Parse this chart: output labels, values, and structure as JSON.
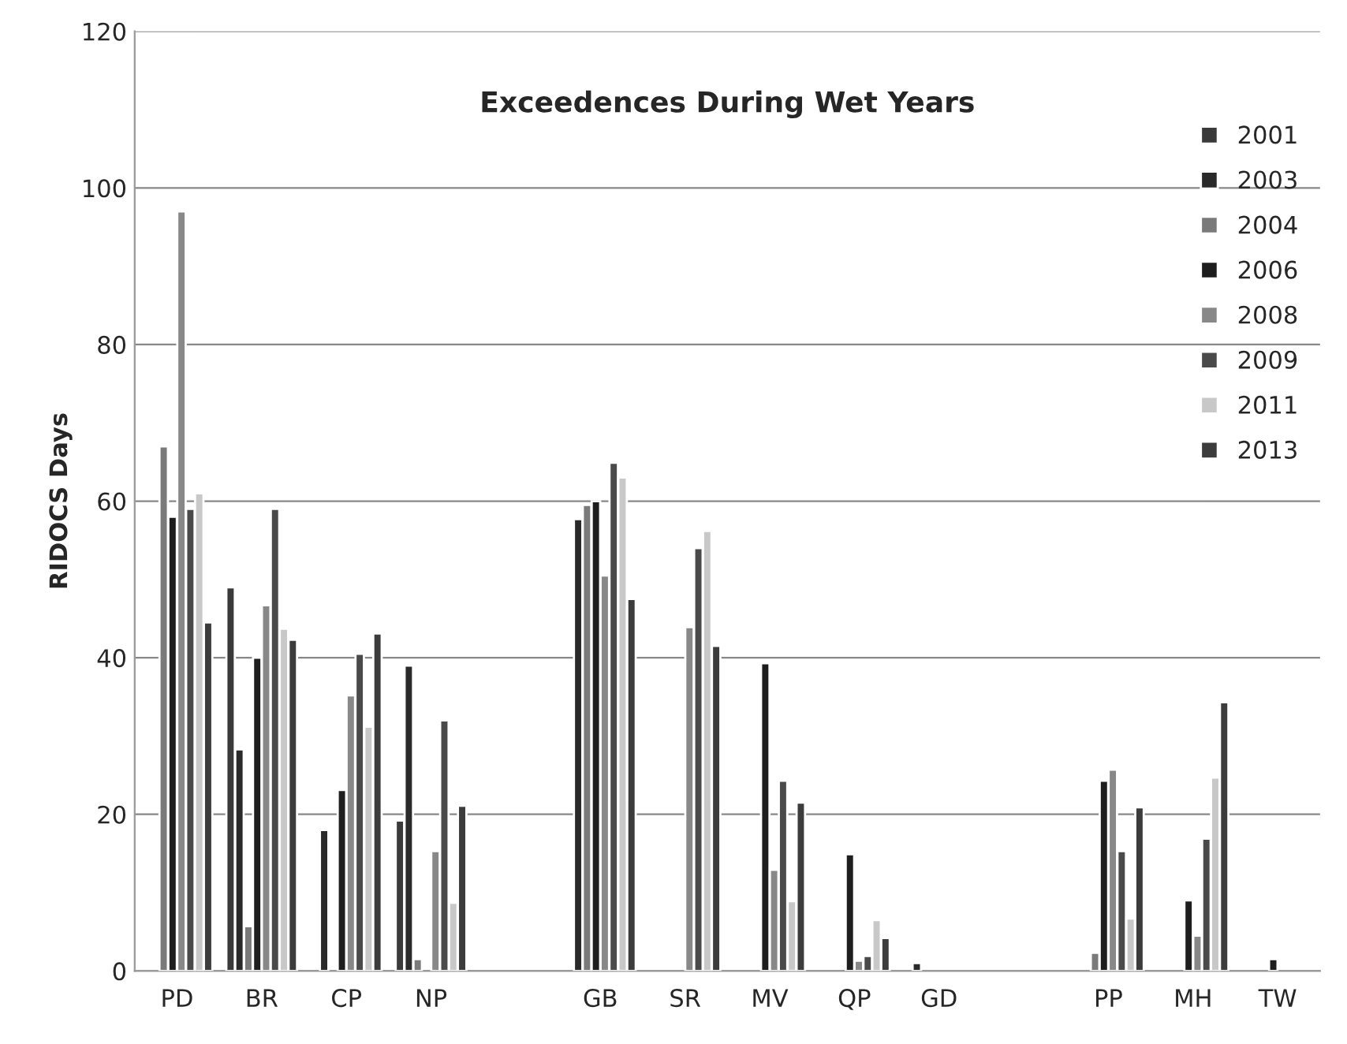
{
  "chart_data": {
    "type": "bar",
    "title": "Exceedences During Wet Years",
    "ylabel": "RIDOCS Days",
    "categories": [
      "PD",
      "BR",
      "CP",
      "NP",
      null,
      "GB",
      "SR",
      "MV",
      "QP",
      "GD",
      null,
      "PP",
      "MH",
      "TW"
    ],
    "series": [
      {
        "name": "2001",
        "color": "#3a3a3a",
        "values": [
          null,
          49,
          null,
          19.2,
          null,
          null,
          null,
          null,
          null,
          null,
          null,
          null,
          null,
          null
        ]
      },
      {
        "name": "2003",
        "color": "#2a2a2a",
        "values": [
          null,
          28.3,
          18,
          39,
          null,
          57.7,
          null,
          null,
          null,
          1,
          null,
          null,
          null,
          null
        ]
      },
      {
        "name": "2004",
        "color": "#7a7a7a",
        "values": [
          67,
          5.7,
          null,
          1.5,
          null,
          59.5,
          null,
          null,
          null,
          null,
          null,
          2.3,
          null,
          null
        ]
      },
      {
        "name": "2006",
        "color": "#1e1e1e",
        "values": [
          58,
          40,
          23.1,
          null,
          null,
          60,
          null,
          39.3,
          14.9,
          null,
          null,
          24.3,
          9,
          1.5
        ]
      },
      {
        "name": "2008",
        "color": "#888888",
        "values": [
          97,
          46.7,
          35.2,
          15.3,
          null,
          50.5,
          43.9,
          12.9,
          1.3,
          null,
          null,
          25.7,
          4.5,
          null
        ]
      },
      {
        "name": "2009",
        "color": "#4a4a4a",
        "values": [
          59,
          59,
          40.5,
          32,
          null,
          64.9,
          54,
          24.3,
          1.9,
          null,
          null,
          15.3,
          16.9,
          null
        ]
      },
      {
        "name": "2011",
        "color": "#c8c8c8",
        "values": [
          61,
          43.7,
          31.2,
          8.7,
          null,
          63,
          56.2,
          8.9,
          6.5,
          null,
          null,
          6.7,
          24.7,
          null
        ]
      },
      {
        "name": "2013",
        "color": "#3c3c3c",
        "values": [
          44.5,
          42.3,
          43.1,
          21.1,
          null,
          47.5,
          41.5,
          21.5,
          4.2,
          null,
          null,
          20.9,
          34.3,
          null
        ]
      }
    ],
    "ylim": [
      0,
      120
    ],
    "yticks": [
      0,
      20,
      40,
      60,
      80,
      100,
      120
    ],
    "grid": "y",
    "legend": "right"
  }
}
